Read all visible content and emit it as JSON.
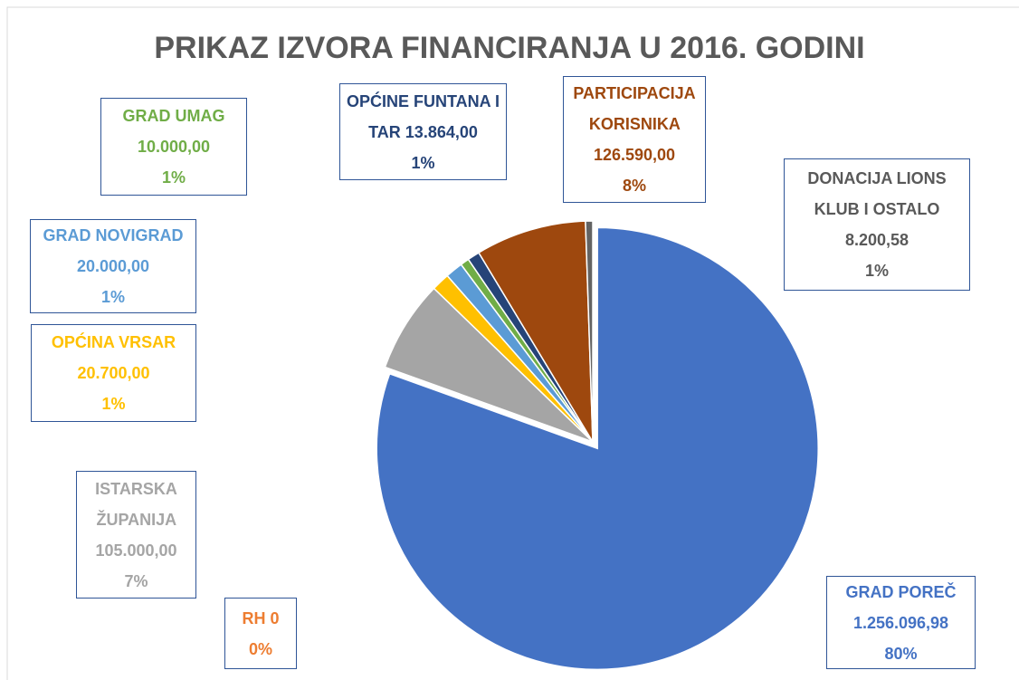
{
  "chart_data": {
    "type": "pie",
    "title": "PRIKAZ IZVORA FINANCIRANJA U 2016. GODINI",
    "categories": [
      "GRAD POREČ",
      "RH",
      "ISTARSKA ŽUPANIJA",
      "OPĆINA VRSAR",
      "GRAD NOVIGRAD",
      "GRAD UMAG",
      "OPĆINE FUNTANA I TAR",
      "PARTICIPACIJA KORISNIKA",
      "DONACIJA LIONS KLUB I OSTALO"
    ],
    "values": [
      1256096.98,
      0,
      105000,
      20700,
      20000,
      10000,
      13864,
      126590,
      8200.58
    ],
    "value_labels": [
      "1.256.096,98",
      "0",
      "105.000,00",
      "20.700,00",
      "20.000,00",
      "10.000,00",
      "13.864,00",
      "126.590,00",
      "8.200,58"
    ],
    "percent_labels": [
      "80%",
      "0%",
      "7%",
      "1%",
      "1%",
      "1%",
      "1%",
      "8%",
      "1%"
    ],
    "colors": [
      "#4472c4",
      "#ed7d31",
      "#a5a5a5",
      "#ffc000",
      "#5b9bd5",
      "#70ad47",
      "#264478",
      "#9e480e",
      "#636363"
    ]
  }
}
